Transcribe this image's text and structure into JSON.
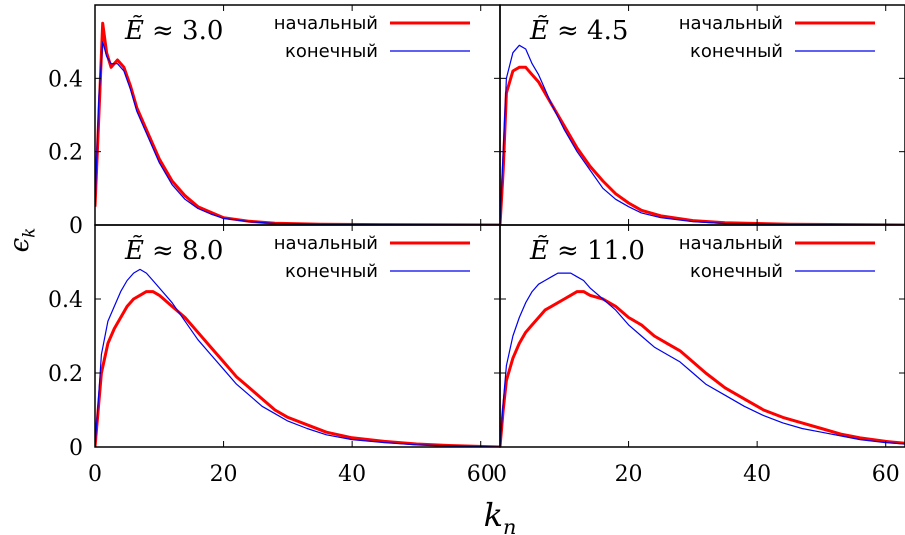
{
  "chart_data": {
    "type": "line",
    "xlabel": "k_n",
    "ylabel": "ϵ_k",
    "xlim": [
      0,
      63
    ],
    "ylim": [
      0,
      0.6
    ],
    "xticks": [
      "0",
      "20",
      "40",
      "60"
    ],
    "yticks": [
      "0",
      "0.2",
      "0.4"
    ],
    "grid": false,
    "legend_placement": "top-right",
    "legend": [
      "начальный",
      "конечный"
    ],
    "series_colors": {
      "initial": "#ff0000",
      "final": "#0000ee"
    },
    "panels": [
      {
        "label": "Ẽ ≈ 3.0",
        "label_var": "Ẽ",
        "label_value": "≈ 3.0",
        "series": [
          {
            "name": "начальный",
            "x": [
              0,
              0.6,
              1.2,
              1.8,
              2.5,
              3.5,
              4.5,
              5.5,
              6.5,
              8,
              10,
              12,
              14,
              16,
              18,
              20,
              24,
              28,
              35,
              45,
              63
            ],
            "y": [
              0.05,
              0.3,
              0.55,
              0.47,
              0.43,
              0.45,
              0.43,
              0.38,
              0.32,
              0.26,
              0.18,
              0.12,
              0.08,
              0.05,
              0.035,
              0.02,
              0.01,
              0.005,
              0.002,
              0.001,
              0
            ]
          },
          {
            "name": "конечный",
            "x": [
              0,
              0.6,
              1.2,
              1.8,
              2.5,
              3.5,
              4.5,
              5.5,
              6.5,
              8,
              10,
              12,
              14,
              16,
              18,
              20,
              24,
              28,
              35,
              45,
              63
            ],
            "y": [
              0.05,
              0.35,
              0.5,
              0.46,
              0.44,
              0.44,
              0.42,
              0.37,
              0.31,
              0.25,
              0.17,
              0.11,
              0.07,
              0.045,
              0.03,
              0.018,
              0.009,
              0.004,
              0.002,
              0.001,
              0
            ]
          }
        ]
      },
      {
        "label": "Ẽ ≈ 4.5",
        "label_var": "Ẽ",
        "label_value": "≈ 4.5",
        "series": [
          {
            "name": "начальный",
            "x": [
              0,
              0.5,
              1,
              2,
              3,
              4,
              5,
              6,
              7,
              8,
              10,
              12,
              14,
              16,
              18,
              20,
              22,
              25,
              30,
              35,
              45,
              63
            ],
            "y": [
              0,
              0.15,
              0.36,
              0.42,
              0.43,
              0.43,
              0.41,
              0.39,
              0.36,
              0.33,
              0.27,
              0.21,
              0.16,
              0.12,
              0.085,
              0.06,
              0.04,
              0.025,
              0.012,
              0.006,
              0.002,
              0
            ]
          },
          {
            "name": "конечный",
            "x": [
              0,
              0.5,
              1,
              2,
              3,
              4,
              5,
              6,
              7,
              8,
              10,
              12,
              14,
              16,
              18,
              20,
              22,
              25,
              30,
              35,
              45,
              63
            ],
            "y": [
              0,
              0.2,
              0.4,
              0.47,
              0.49,
              0.48,
              0.44,
              0.41,
              0.37,
              0.33,
              0.26,
              0.2,
              0.15,
              0.1,
              0.07,
              0.05,
              0.033,
              0.02,
              0.009,
              0.004,
              0.001,
              0
            ]
          }
        ]
      },
      {
        "label": "Ẽ ≈ 8.0",
        "label_var": "Ẽ",
        "label_value": "≈ 8.0",
        "series": [
          {
            "name": "начальный",
            "x": [
              0,
              0.5,
              1,
              2,
              3,
              4,
              5,
              6,
              7,
              8,
              9,
              10,
              12,
              14,
              16,
              18,
              20,
              22,
              24,
              26,
              28,
              30,
              33,
              36,
              40,
              45,
              50,
              55,
              63
            ],
            "y": [
              0,
              0.1,
              0.2,
              0.28,
              0.32,
              0.35,
              0.38,
              0.4,
              0.41,
              0.42,
              0.42,
              0.41,
              0.38,
              0.35,
              0.31,
              0.27,
              0.23,
              0.19,
              0.16,
              0.13,
              0.1,
              0.08,
              0.06,
              0.04,
              0.025,
              0.015,
              0.008,
              0.004,
              0
            ]
          },
          {
            "name": "конечный",
            "x": [
              0,
              0.5,
              1,
              2,
              3,
              4,
              5,
              6,
              7,
              8,
              9,
              10,
              12,
              14,
              16,
              18,
              20,
              22,
              24,
              26,
              28,
              30,
              33,
              36,
              40,
              45,
              50,
              55,
              63
            ],
            "y": [
              0,
              0.12,
              0.25,
              0.34,
              0.38,
              0.42,
              0.45,
              0.47,
              0.48,
              0.47,
              0.45,
              0.43,
              0.39,
              0.34,
              0.29,
              0.25,
              0.21,
              0.17,
              0.14,
              0.11,
              0.09,
              0.07,
              0.05,
              0.033,
              0.02,
              0.012,
              0.006,
              0.003,
              0
            ]
          }
        ]
      },
      {
        "label": "Ẽ ≈ 11.0",
        "label_var": "Ẽ",
        "label_value": "≈ 11.0",
        "series": [
          {
            "name": "начальный",
            "x": [
              0,
              0.5,
              1,
              2,
              3,
              4,
              5,
              6,
              7,
              8,
              9,
              10,
              11,
              12,
              13,
              14,
              16,
              18,
              20,
              22,
              24,
              26,
              28,
              30,
              32,
              35,
              38,
              41,
              44,
              47,
              50,
              53,
              56,
              60,
              63
            ],
            "y": [
              0,
              0.1,
              0.18,
              0.24,
              0.28,
              0.31,
              0.33,
              0.35,
              0.37,
              0.38,
              0.39,
              0.4,
              0.41,
              0.42,
              0.42,
              0.41,
              0.4,
              0.38,
              0.35,
              0.33,
              0.3,
              0.28,
              0.26,
              0.23,
              0.2,
              0.16,
              0.13,
              0.1,
              0.08,
              0.065,
              0.05,
              0.035,
              0.025,
              0.015,
              0.01
            ]
          },
          {
            "name": "конечный",
            "x": [
              0,
              0.5,
              1,
              2,
              3,
              4,
              5,
              6,
              7,
              8,
              9,
              10,
              11,
              12,
              13,
              14,
              16,
              18,
              20,
              22,
              24,
              26,
              28,
              30,
              32,
              35,
              38,
              41,
              44,
              47,
              50,
              53,
              56,
              60,
              63
            ],
            "y": [
              0,
              0.12,
              0.22,
              0.3,
              0.35,
              0.39,
              0.42,
              0.44,
              0.45,
              0.46,
              0.47,
              0.47,
              0.47,
              0.46,
              0.45,
              0.43,
              0.4,
              0.37,
              0.33,
              0.3,
              0.27,
              0.25,
              0.23,
              0.2,
              0.17,
              0.14,
              0.11,
              0.085,
              0.065,
              0.05,
              0.04,
              0.03,
              0.02,
              0.012,
              0.008
            ]
          }
        ]
      }
    ]
  }
}
